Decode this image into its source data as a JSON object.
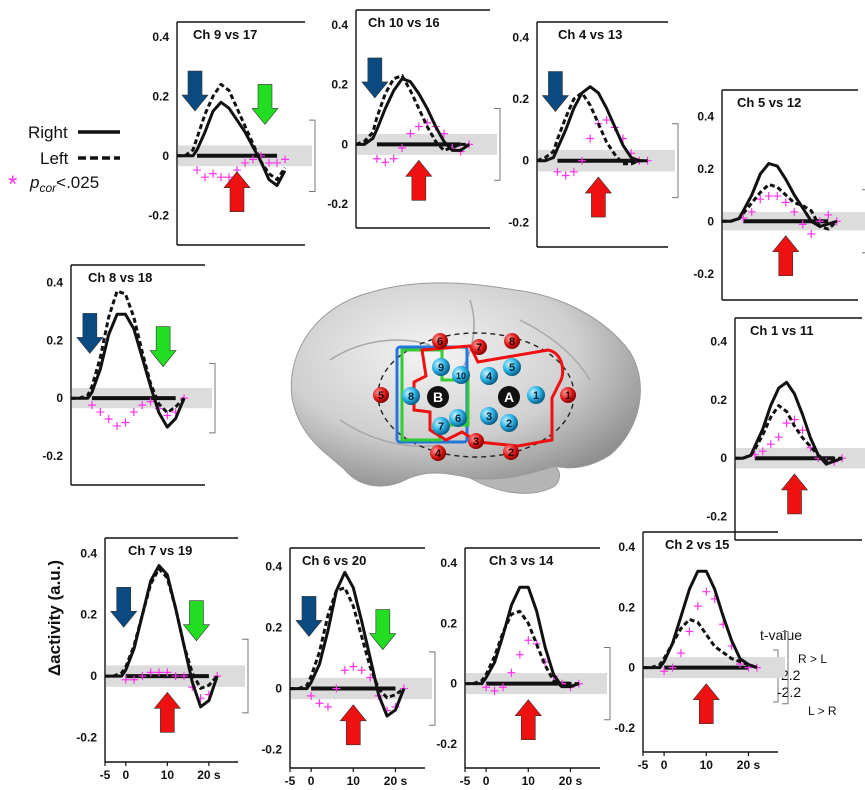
{
  "figure": {
    "ylabel": "Δactivity (a.u.)",
    "legend": {
      "right": "Right",
      "left": "Left",
      "sig_star": "*",
      "sig_p": "p",
      "sig_sub": "cor",
      "sig_rest": "<.025"
    },
    "tvalue": {
      "title": "t-value",
      "upper": "2.2",
      "lower": "-2.2",
      "upper_label": "R > L",
      "lower_label": "L > R"
    },
    "x_ticks": [
      "-5",
      "0",
      "10",
      "20 s"
    ],
    "brain": {
      "red_channels": [
        "1",
        "2",
        "3",
        "4",
        "5",
        "6",
        "7",
        "8"
      ],
      "cyan_channels": [
        "1",
        "2",
        "3",
        "4",
        "5",
        "6",
        "7",
        "8",
        "9",
        "10"
      ],
      "sources": [
        "A",
        "B"
      ]
    },
    "colors": {
      "onset_arrow": "#0b4a80",
      "offset_arrow": "#22dd22",
      "peak_arrow": "#ee1111",
      "significance": "#ff33ee",
      "right_roi": "#ee1111",
      "left_roi_outer": "#2277dd",
      "left_roi_inner": "#33cc33"
    }
  },
  "chart_data": [
    {
      "type": "line",
      "id": "p9",
      "title": "Ch 9 vs 17",
      "y_ticks": [
        0.4,
        0.2,
        0,
        -0.2
      ],
      "ylim": [
        -0.3,
        0.45
      ],
      "xlim": [
        -5,
        27
      ],
      "x_ticks_shown": false,
      "arrows": [
        "onset",
        "offset",
        "peak"
      ],
      "series": [
        {
          "name": "Right",
          "style": "solid",
          "x": [
            -5,
            -3,
            -1,
            0,
            2,
            4,
            6,
            8,
            10,
            12,
            14,
            16,
            18,
            20,
            22
          ],
          "y": [
            0,
            0,
            0,
            0.02,
            0.08,
            0.15,
            0.18,
            0.16,
            0.12,
            0.08,
            0.03,
            -0.02,
            -0.08,
            -0.1,
            -0.05
          ]
        },
        {
          "name": "Left",
          "style": "dashed",
          "x": [
            -5,
            -3,
            -1,
            0,
            2,
            4,
            6,
            8,
            10,
            12,
            14,
            16,
            18,
            20,
            22
          ],
          "y": [
            0,
            0,
            0.02,
            0.06,
            0.14,
            0.2,
            0.24,
            0.22,
            0.16,
            0.1,
            0.04,
            -0.02,
            -0.06,
            -0.08,
            -0.04
          ]
        }
      ]
    },
    {
      "type": "line",
      "id": "p10",
      "title": "Ch 10 vs 16",
      "y_ticks": [
        0.4,
        0.2,
        0,
        -0.2
      ],
      "ylim": [
        -0.28,
        0.45
      ],
      "xlim": [
        -5,
        27
      ],
      "x_ticks_shown": false,
      "arrows": [
        "onset",
        "peak"
      ],
      "series": [
        {
          "name": "Right",
          "style": "solid",
          "x": [
            -5,
            -3,
            -1,
            0,
            2,
            4,
            6,
            8,
            10,
            12,
            14,
            16,
            18,
            20,
            22
          ],
          "y": [
            0,
            0,
            0.02,
            0.05,
            0.12,
            0.18,
            0.22,
            0.21,
            0.17,
            0.12,
            0.06,
            0.01,
            -0.02,
            -0.02,
            0
          ]
        },
        {
          "name": "Left",
          "style": "dashed",
          "x": [
            -5,
            -3,
            -1,
            0,
            2,
            4,
            6,
            8,
            10,
            12,
            14,
            16,
            18,
            20,
            22
          ],
          "y": [
            0,
            0.01,
            0.04,
            0.09,
            0.17,
            0.22,
            0.23,
            0.18,
            0.12,
            0.06,
            0.01,
            -0.02,
            -0.01,
            0,
            0
          ]
        }
      ]
    },
    {
      "type": "line",
      "id": "p4",
      "title": "Ch 4 vs 13",
      "y_ticks": [
        0.4,
        0.2,
        0,
        -0.2
      ],
      "ylim": [
        -0.28,
        0.45
      ],
      "xlim": [
        -5,
        27
      ],
      "x_ticks_shown": false,
      "arrows": [
        "onset",
        "peak"
      ],
      "series": [
        {
          "name": "Right",
          "style": "solid",
          "x": [
            -5,
            -3,
            -1,
            0,
            2,
            4,
            6,
            8,
            10,
            12,
            14,
            16,
            18,
            20,
            22
          ],
          "y": [
            0,
            0,
            0.01,
            0.04,
            0.1,
            0.17,
            0.22,
            0.24,
            0.22,
            0.17,
            0.11,
            0.05,
            0.01,
            0,
            0
          ]
        },
        {
          "name": "Left",
          "style": "dashed",
          "x": [
            -5,
            -3,
            -1,
            0,
            2,
            4,
            6,
            8,
            10,
            12,
            14,
            16,
            18,
            20,
            22
          ],
          "y": [
            0,
            0.01,
            0.03,
            0.07,
            0.14,
            0.2,
            0.22,
            0.18,
            0.12,
            0.06,
            0.02,
            -0.01,
            -0.01,
            0,
            0
          ]
        }
      ]
    },
    {
      "type": "line",
      "id": "p5",
      "title": "Ch 5 vs 12",
      "y_ticks": [
        0.4,
        0.2,
        0,
        -0.2
      ],
      "ylim": [
        -0.3,
        0.5
      ],
      "xlim": [
        -5,
        27
      ],
      "x_ticks_shown": false,
      "arrows": [
        "peak"
      ],
      "series": [
        {
          "name": "Right",
          "style": "solid",
          "x": [
            -5,
            -3,
            -1,
            0,
            2,
            4,
            6,
            8,
            10,
            12,
            14,
            16,
            18,
            20,
            22
          ],
          "y": [
            0,
            0,
            0.01,
            0.04,
            0.1,
            0.18,
            0.22,
            0.21,
            0.16,
            0.1,
            0.05,
            0,
            -0.02,
            -0.01,
            0
          ]
        },
        {
          "name": "Left",
          "style": "dashed",
          "x": [
            -5,
            -3,
            -1,
            0,
            2,
            4,
            6,
            8,
            10,
            12,
            14,
            16,
            18,
            20,
            22
          ],
          "y": [
            0,
            0,
            0.01,
            0.03,
            0.07,
            0.11,
            0.14,
            0.13,
            0.1,
            0.07,
            0.06,
            0.04,
            -0.02,
            -0.03,
            0
          ]
        }
      ]
    },
    {
      "type": "line",
      "id": "p8",
      "title": "Ch 8 vs 18",
      "y_ticks": [
        0.4,
        0.2,
        0,
        -0.2
      ],
      "ylim": [
        -0.3,
        0.46
      ],
      "xlim": [
        -5,
        27
      ],
      "x_ticks_shown": false,
      "arrows": [
        "onset",
        "offset"
      ],
      "series": [
        {
          "name": "Right",
          "style": "solid",
          "x": [
            -5,
            -3,
            -1,
            0,
            2,
            4,
            6,
            8,
            10,
            12,
            14,
            16,
            18,
            20,
            22
          ],
          "y": [
            0,
            0,
            0,
            0.02,
            0.1,
            0.22,
            0.29,
            0.29,
            0.24,
            0.14,
            0.04,
            -0.05,
            -0.1,
            -0.07,
            0
          ]
        },
        {
          "name": "Left",
          "style": "dashed",
          "x": [
            -5,
            -3,
            -1,
            0,
            2,
            4,
            6,
            8,
            10,
            12,
            14,
            16,
            18,
            20,
            22
          ],
          "y": [
            0,
            0,
            0.01,
            0.04,
            0.14,
            0.28,
            0.37,
            0.36,
            0.28,
            0.16,
            0.05,
            -0.02,
            -0.05,
            -0.03,
            0
          ]
        }
      ]
    },
    {
      "type": "line",
      "id": "p1",
      "title": "Ch 1 vs 11",
      "y_ticks": [
        0.4,
        0.2,
        0,
        -0.2
      ],
      "ylim": [
        -0.28,
        0.48
      ],
      "xlim": [
        -5,
        27
      ],
      "x_ticks_shown": false,
      "arrows": [
        "peak"
      ],
      "series": [
        {
          "name": "Right",
          "style": "solid",
          "x": [
            -5,
            -3,
            -1,
            0,
            2,
            4,
            6,
            8,
            10,
            12,
            14,
            16,
            18,
            20,
            22
          ],
          "y": [
            0,
            0,
            0.01,
            0.04,
            0.1,
            0.18,
            0.24,
            0.26,
            0.22,
            0.15,
            0.07,
            0.01,
            -0.02,
            -0.01,
            0
          ]
        },
        {
          "name": "Left",
          "style": "dashed",
          "x": [
            -5,
            -3,
            -1,
            0,
            2,
            4,
            6,
            8,
            10,
            12,
            14,
            16,
            18,
            20,
            22
          ],
          "y": [
            0,
            0,
            0.01,
            0.03,
            0.08,
            0.14,
            0.18,
            0.16,
            0.11,
            0.07,
            0.04,
            0.01,
            -0.01,
            0,
            0
          ]
        }
      ]
    },
    {
      "type": "line",
      "id": "p7",
      "title": "Ch 7 vs 19",
      "y_ticks": [
        0.4,
        0.2,
        0,
        -0.2
      ],
      "ylim": [
        -0.28,
        0.45
      ],
      "xlim": [
        -5,
        27
      ],
      "x_ticks_shown": true,
      "arrows": [
        "onset",
        "offset",
        "peak"
      ],
      "series": [
        {
          "name": "Right",
          "style": "solid",
          "x": [
            -5,
            -3,
            -1,
            0,
            2,
            4,
            6,
            8,
            10,
            12,
            14,
            16,
            18,
            20,
            22
          ],
          "y": [
            0,
            0,
            0,
            0.02,
            0.09,
            0.2,
            0.31,
            0.36,
            0.33,
            0.22,
            0.1,
            -0.02,
            -0.1,
            -0.08,
            0
          ]
        },
        {
          "name": "Left",
          "style": "dashed",
          "x": [
            -5,
            -3,
            -1,
            0,
            2,
            4,
            6,
            8,
            10,
            12,
            14,
            16,
            18,
            20,
            22
          ],
          "y": [
            0,
            0,
            0.01,
            0.03,
            0.1,
            0.2,
            0.3,
            0.35,
            0.32,
            0.22,
            0.1,
            0.01,
            -0.04,
            -0.03,
            0
          ]
        }
      ]
    },
    {
      "type": "line",
      "id": "p6",
      "title": "Ch 6 vs 20",
      "y_ticks": [
        0.4,
        0.2,
        0,
        -0.2
      ],
      "ylim": [
        -0.26,
        0.46
      ],
      "xlim": [
        -5,
        27
      ],
      "x_ticks_shown": true,
      "arrows": [
        "onset",
        "offset",
        "peak"
      ],
      "series": [
        {
          "name": "Right",
          "style": "solid",
          "x": [
            -5,
            -3,
            -1,
            0,
            2,
            4,
            6,
            8,
            10,
            12,
            14,
            16,
            18,
            20,
            22
          ],
          "y": [
            0,
            0,
            0,
            0.02,
            0.08,
            0.19,
            0.32,
            0.38,
            0.33,
            0.22,
            0.1,
            -0.02,
            -0.09,
            -0.07,
            0
          ]
        },
        {
          "name": "Left",
          "style": "dashed",
          "x": [
            -5,
            -3,
            -1,
            0,
            2,
            4,
            6,
            8,
            10,
            12,
            14,
            16,
            18,
            20,
            22
          ],
          "y": [
            0,
            0,
            0.01,
            0.04,
            0.12,
            0.24,
            0.32,
            0.33,
            0.27,
            0.17,
            0.07,
            0,
            -0.03,
            -0.02,
            0
          ]
        }
      ]
    },
    {
      "type": "line",
      "id": "p3",
      "title": "Ch 3 vs 14",
      "y_ticks": [
        0.4,
        0.2,
        0,
        -0.2
      ],
      "ylim": [
        -0.28,
        0.45
      ],
      "xlim": [
        -5,
        27
      ],
      "x_ticks_shown": true,
      "arrows": [
        "peak"
      ],
      "series": [
        {
          "name": "Right",
          "style": "solid",
          "x": [
            -5,
            -3,
            -1,
            0,
            2,
            4,
            6,
            8,
            10,
            12,
            14,
            16,
            18,
            20,
            22
          ],
          "y": [
            0,
            0,
            0,
            0.02,
            0.07,
            0.16,
            0.26,
            0.32,
            0.32,
            0.24,
            0.12,
            0.03,
            -0.01,
            -0.01,
            0
          ]
        },
        {
          "name": "Left",
          "style": "dashed",
          "x": [
            -5,
            -3,
            -1,
            0,
            2,
            4,
            6,
            8,
            10,
            12,
            14,
            16,
            18,
            20,
            22
          ],
          "y": [
            0,
            0,
            0.01,
            0.03,
            0.09,
            0.17,
            0.23,
            0.24,
            0.2,
            0.13,
            0.06,
            0.01,
            -0.01,
            0,
            0
          ]
        }
      ]
    },
    {
      "type": "line",
      "id": "p2",
      "title": "Ch 2 vs 15",
      "y_ticks": [
        0.4,
        0.2,
        0,
        -0.2
      ],
      "ylim": [
        -0.28,
        0.45
      ],
      "xlim": [
        -5,
        27
      ],
      "x_ticks_shown": true,
      "arrows": [
        "peak"
      ],
      "series": [
        {
          "name": "Right",
          "style": "solid",
          "x": [
            -5,
            -3,
            -1,
            0,
            2,
            4,
            6,
            8,
            10,
            12,
            14,
            16,
            18,
            20,
            22
          ],
          "y": [
            0,
            0,
            0,
            0.02,
            0.08,
            0.17,
            0.26,
            0.32,
            0.32,
            0.26,
            0.17,
            0.09,
            0.03,
            0.01,
            0
          ]
        },
        {
          "name": "Left",
          "style": "dashed",
          "x": [
            -5,
            -3,
            -1,
            0,
            2,
            4,
            6,
            8,
            10,
            12,
            14,
            16,
            18,
            20,
            22
          ],
          "y": [
            0,
            0,
            0.01,
            0.03,
            0.08,
            0.13,
            0.16,
            0.15,
            0.11,
            0.07,
            0.05,
            0.03,
            0.02,
            0.01,
            0
          ]
        }
      ]
    }
  ]
}
